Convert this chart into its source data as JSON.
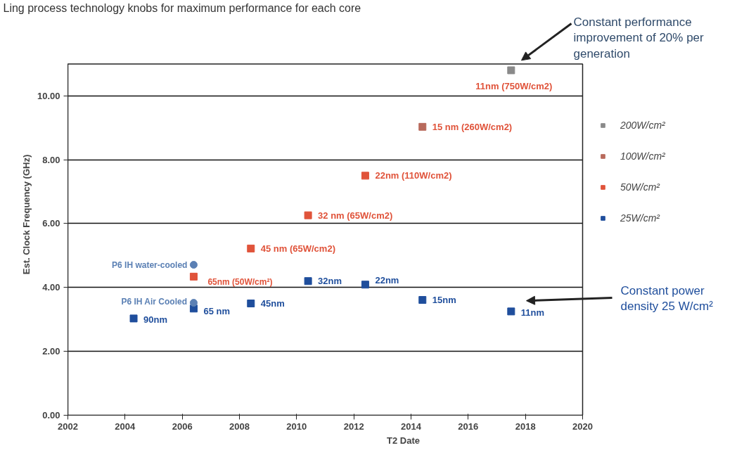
{
  "chart_data": {
    "type": "scatter",
    "xlabel": "T2 Date",
    "ylabel": "Est. Clock Frequency (GHz)",
    "xlim": [
      2002,
      2020
    ],
    "xticks": [
      2002,
      2004,
      2006,
      2008,
      2010,
      2012,
      2014,
      2016,
      2018,
      2020
    ],
    "ylim": [
      0,
      11
    ],
    "yticks": [
      {
        "value": 0,
        "label": "0.00"
      },
      {
        "value": 2,
        "label": "2.00"
      },
      {
        "value": 4,
        "label": "4.00"
      },
      {
        "value": 6,
        "label": "6.00"
      },
      {
        "value": 8,
        "label": "8.00"
      },
      {
        "value": 10,
        "label": "10.00"
      }
    ],
    "grid": "y",
    "legend": "right",
    "marker": "square",
    "series": [
      {
        "name": "200W/cm²",
        "color": "#8a8a8a",
        "x": [
          2017.5
        ],
        "values": [
          10.8
        ]
      },
      {
        "name": "100W/cm²",
        "color": "#b86a5c",
        "x": [
          2014.4
        ],
        "values": [
          9.03
        ]
      },
      {
        "name": "50W/cm²",
        "color": "#e0533a",
        "x": [
          2006.4,
          2008.4,
          2010.4,
          2012.4
        ],
        "values": [
          4.34,
          5.22,
          6.26,
          7.5
        ]
      },
      {
        "name": "25W/cm²",
        "color": "#1f4e9c",
        "x": [
          2004.3,
          2006.4,
          2008.4,
          2010.4,
          2012.4,
          2014.4,
          2017.5
        ],
        "values": [
          3.03,
          3.34,
          3.5,
          4.2,
          4.09,
          3.61,
          3.25
        ]
      },
      {
        "color": "#5b80b4",
        "marker": "circle",
        "x": [
          2006.4,
          2006.4
        ],
        "values": [
          4.71,
          3.52
        ]
      }
    ],
    "annotations": [
      "Ling process technology knobs for maximum performance for each core",
      "Constant performance improvement of 20% per generation",
      "Constant power density 25 W/cm²",
      {
        "text": "11nm (750W/cm2)",
        "x": 2017.5,
        "y": 10.8
      },
      {
        "text": "15 nm (260W/cm2)",
        "x": 2014.4,
        "y": 9.03
      },
      {
        "text": "22nm (110W/cm2)",
        "x": 2012.4,
        "y": 7.5
      },
      {
        "text": "32 nm (65W/cm2)",
        "x": 2010.4,
        "y": 6.26
      },
      {
        "text": "45 nm (65W/cm2)",
        "x": 2008.4,
        "y": 5.22
      },
      {
        "text": "65nm (50W/cm²)",
        "x": 2006.4,
        "y": 4.34
      },
      {
        "text": "P6 IH water-cooled",
        "x": 2006.4,
        "y": 4.71
      },
      {
        "text": "P6 IH Air Cooled",
        "x": 2006.4,
        "y": 3.52
      },
      {
        "text": "90nm",
        "x": 2004.3,
        "y": 3.03
      },
      {
        "text": "65 nm",
        "x": 2006.4,
        "y": 3.34
      },
      {
        "text": "45nm",
        "x": 2008.4,
        "y": 3.5
      },
      {
        "text": "32nm",
        "x": 2010.4,
        "y": 4.2
      },
      {
        "text": "22nm",
        "x": 2012.4,
        "y": 4.09
      },
      {
        "text": "15nm",
        "x": 2014.4,
        "y": 3.61
      },
      {
        "text": "11nm",
        "x": 2017.5,
        "y": 3.25
      }
    ]
  }
}
